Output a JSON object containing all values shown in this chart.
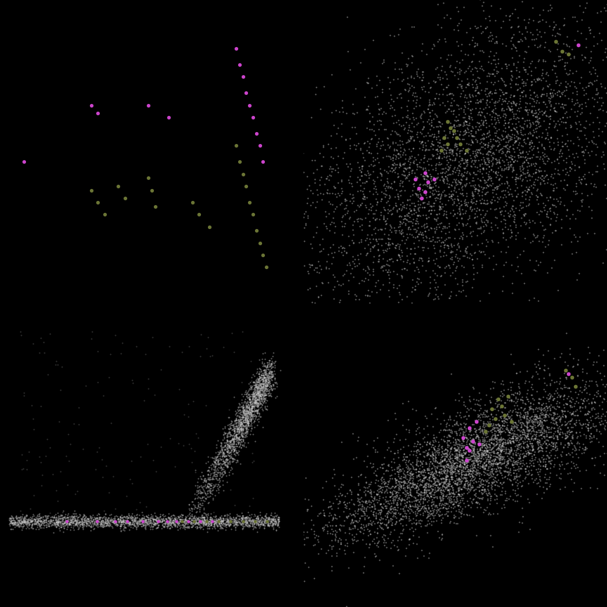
{
  "background_color": "#000000",
  "gray": "#c8c8c8",
  "magenta": "#cc44cc",
  "olive": "#6b7535",
  "figsize": [
    8.64,
    8.64
  ],
  "dpi": 100
}
